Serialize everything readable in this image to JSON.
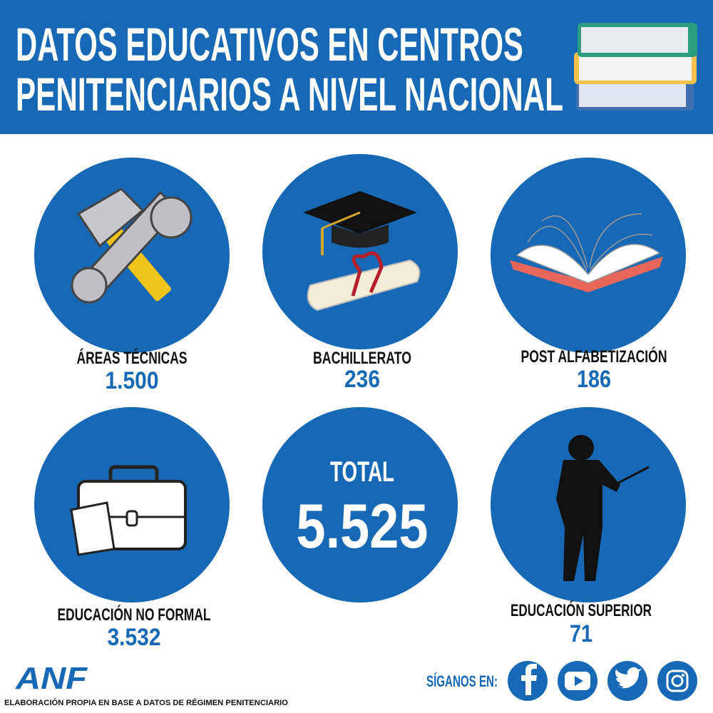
{
  "header": {
    "title": [
      "DATOS EDUCATIVOS EN CENTROS",
      "PENITENCIARIOS A NIVEL NACIONAL"
    ]
  },
  "items": [
    {
      "label": "ÁREAS TÉCNICAS",
      "value": "1.500"
    },
    {
      "label": "BACHILLERATO",
      "value": "236"
    },
    {
      "label": "POST ALFABETIZACIÓN",
      "value": "186"
    },
    {
      "label": "EDUCACIÓN NO FORMAL",
      "value": "3.532"
    },
    {
      "label": "EDUCACIÓN SUPERIOR",
      "value": "71"
    }
  ],
  "total": {
    "label": "TOTAL",
    "value": "5.525"
  },
  "footer": {
    "logo": "ANF",
    "source": "ELABORACIÓN PROPIA EN BASE A DATOS DE RÉGIMEN PENITENCIARIO",
    "follow": "SÍGANOS EN:"
  }
}
